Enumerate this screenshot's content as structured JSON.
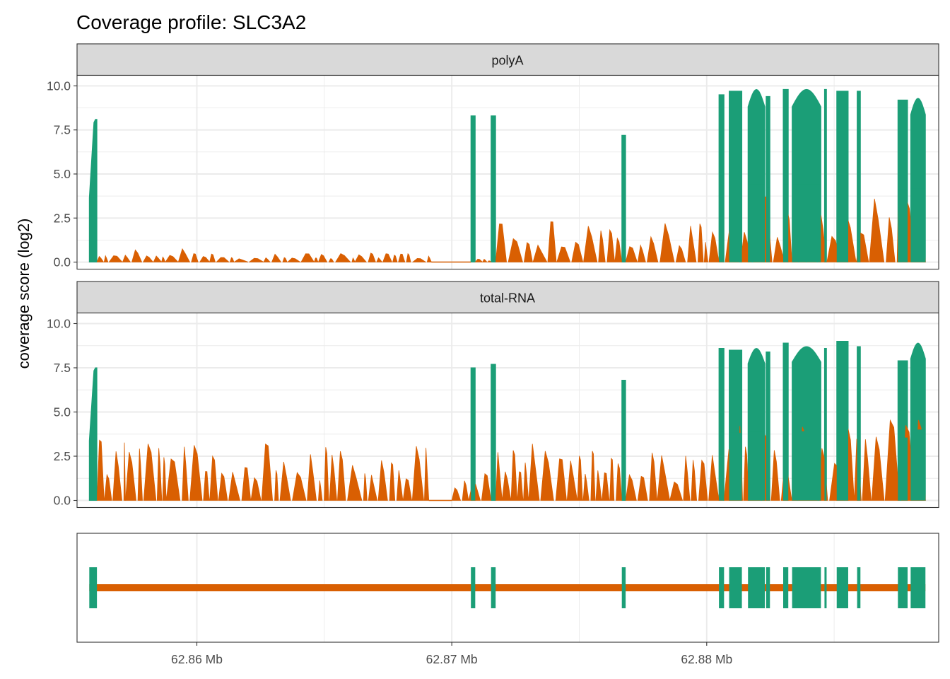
{
  "chart_data": {
    "type": "area",
    "title": "Coverage profile: SLC3A2",
    "ylabel": "coverage score (log2)",
    "xlabel": "",
    "x_unit": "Mb",
    "xlim": [
      62.8553,
      62.8891
    ],
    "x_ticks": [
      62.86,
      62.87,
      62.88
    ],
    "x_tick_labels": [
      "62.86 Mb",
      "62.87 Mb",
      "62.88 Mb"
    ],
    "ylim": [
      -0.4,
      10.6
    ],
    "y_ticks": [
      0,
      2.5,
      5,
      7.5,
      10
    ],
    "y_tick_labels": [
      "0.0",
      "2.5",
      "5.0",
      "7.5",
      "10.0"
    ],
    "grid": true,
    "legend": "none",
    "colors": {
      "exon": "#1B9E77",
      "intron": "#D95F02",
      "strip_fill": "#D9D9D9",
      "panel_border": "#333333",
      "grid": "#EBEBEB"
    },
    "exons": [
      [
        62.85578,
        62.85608
      ],
      [
        62.87075,
        62.87092
      ],
      [
        62.87154,
        62.87172
      ],
      [
        62.87667,
        62.87682
      ],
      [
        62.88048,
        62.88068
      ],
      [
        62.88088,
        62.88138
      ],
      [
        62.88162,
        62.88228
      ],
      [
        62.88233,
        62.88248
      ],
      [
        62.883,
        62.8832
      ],
      [
        62.88335,
        62.88448
      ],
      [
        62.88462,
        62.8847
      ],
      [
        62.8851,
        62.88555
      ],
      [
        62.8859,
        62.88603
      ],
      [
        62.8875,
        62.88788
      ],
      [
        62.888,
        62.88858
      ]
    ],
    "panels": [
      {
        "name": "polyA",
        "exon_peaks": [
          8.1,
          8.3,
          8.3,
          7.2,
          9.5,
          9.7,
          9.8,
          9.4,
          9.8,
          9.8,
          9.8,
          9.7,
          9.7,
          9.2,
          9.3
        ],
        "intron_segments": [
          {
            "from": 62.85608,
            "to": 62.8605,
            "level": 0.8
          },
          {
            "from": 62.8605,
            "to": 62.8662,
            "level": 0.5
          },
          {
            "from": 62.8662,
            "to": 62.8692,
            "level": 0.55
          },
          {
            "from": 62.8692,
            "to": 62.87075,
            "level": 0.0
          },
          {
            "from": 62.87092,
            "to": 62.87154,
            "level": 0.2
          },
          {
            "from": 62.87172,
            "to": 62.87667,
            "level": 2.3
          },
          {
            "from": 62.87682,
            "to": 62.88048,
            "level": 2.2
          },
          {
            "from": 62.88048,
            "to": 62.88858,
            "level": 3.8
          }
        ]
      },
      {
        "name": "total-RNA",
        "exon_peaks": [
          7.5,
          7.5,
          7.7,
          6.8,
          8.6,
          8.5,
          8.6,
          8.4,
          8.9,
          8.7,
          8.6,
          9.0,
          8.7,
          7.9,
          8.9
        ],
        "intron_segments": [
          {
            "from": 62.85608,
            "to": 62.8572,
            "level": 3.5
          },
          {
            "from": 62.8572,
            "to": 62.8691,
            "level": 3.2
          },
          {
            "from": 62.8691,
            "to": 62.87,
            "level": 0.0
          },
          {
            "from": 62.87,
            "to": 62.87154,
            "level": 1.6
          },
          {
            "from": 62.87172,
            "to": 62.87667,
            "level": 3.5
          },
          {
            "from": 62.87682,
            "to": 62.88048,
            "level": 2.9
          },
          {
            "from": 62.88048,
            "to": 62.88858,
            "level": 4.6
          }
        ]
      }
    ]
  }
}
